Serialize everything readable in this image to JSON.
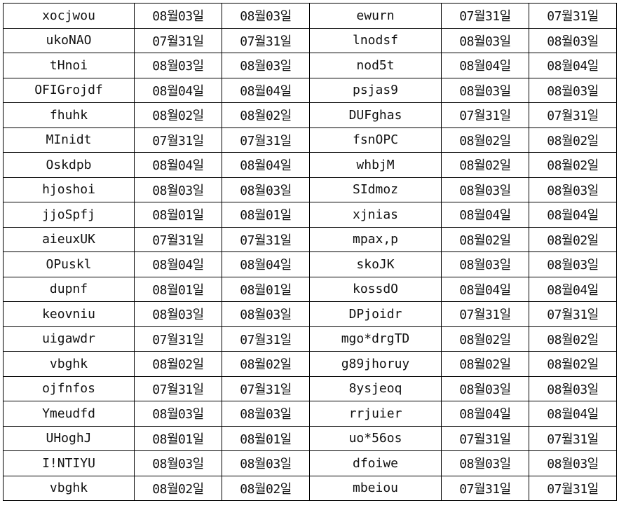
{
  "rows": [
    {
      "name1": "xocjwou",
      "a1": "08월03일",
      "b1": "08월03일",
      "name2": "ewurn",
      "a2": "07월31일",
      "b2": "07월31일"
    },
    {
      "name1": "ukoNAO",
      "a1": "07월31일",
      "b1": "07월31일",
      "name2": "lnodsf",
      "a2": "08월03일",
      "b2": "08월03일"
    },
    {
      "name1": "tHnoi",
      "a1": "08월03일",
      "b1": "08월03일",
      "name2": "nod5t",
      "a2": "08월04일",
      "b2": "08월04일"
    },
    {
      "name1": "OFIGrojdf",
      "a1": "08월04일",
      "b1": "08월04일",
      "name2": "psjas9",
      "a2": "08월03일",
      "b2": "08월03일"
    },
    {
      "name1": "fhuhk",
      "a1": "08월02일",
      "b1": "08월02일",
      "name2": "DUFghas",
      "a2": "07월31일",
      "b2": "07월31일"
    },
    {
      "name1": "MInidt",
      "a1": "07월31일",
      "b1": "07월31일",
      "name2": "fsnOPC",
      "a2": "08월02일",
      "b2": "08월02일"
    },
    {
      "name1": "Oskdpb",
      "a1": "08월04일",
      "b1": "08월04일",
      "name2": "whbjM",
      "a2": "08월02일",
      "b2": "08월02일"
    },
    {
      "name1": "hjoshoi",
      "a1": "08월03일",
      "b1": "08월03일",
      "name2": "SIdmoz",
      "a2": "08월03일",
      "b2": "08월03일"
    },
    {
      "name1": "jjoSpfj",
      "a1": "08월01일",
      "b1": "08월01일",
      "name2": "xjnias",
      "a2": "08월04일",
      "b2": "08월04일"
    },
    {
      "name1": "aieuxUK",
      "a1": "07월31일",
      "b1": "07월31일",
      "name2": "mpax,p",
      "a2": "08월02일",
      "b2": "08월02일"
    },
    {
      "name1": "OPuskl",
      "a1": "08월04일",
      "b1": "08월04일",
      "name2": "skoJK",
      "a2": "08월03일",
      "b2": "08월03일"
    },
    {
      "name1": "dupnf",
      "a1": "08월01일",
      "b1": "08월01일",
      "name2": "kossdO",
      "a2": "08월04일",
      "b2": "08월04일"
    },
    {
      "name1": "keovniu",
      "a1": "08월03일",
      "b1": "08월03일",
      "name2": "DPjoidr",
      "a2": "07월31일",
      "b2": "07월31일"
    },
    {
      "name1": "uigawdr",
      "a1": "07월31일",
      "b1": "07월31일",
      "name2": "mgo*drgTD",
      "a2": "08월02일",
      "b2": "08월02일"
    },
    {
      "name1": "vbghk",
      "a1": "08월02일",
      "b1": "08월02일",
      "name2": "g89jhoruy",
      "a2": "08월02일",
      "b2": "08월02일"
    },
    {
      "name1": "ojfnfos",
      "a1": "07월31일",
      "b1": "07월31일",
      "name2": "8ysjeoq",
      "a2": "08월03일",
      "b2": "08월03일"
    },
    {
      "name1": "Ymeudfd",
      "a1": "08월03일",
      "b1": "08월03일",
      "name2": "rrjuier",
      "a2": "08월04일",
      "b2": "08월04일"
    },
    {
      "name1": "UHoghJ",
      "a1": "08월01일",
      "b1": "08월01일",
      "name2": "uo*56os",
      "a2": "07월31일",
      "b2": "07월31일"
    },
    {
      "name1": "I!NTIYU",
      "a1": "08월03일",
      "b1": "08월03일",
      "name2": "dfoiwe",
      "a2": "08월03일",
      "b2": "08월03일"
    },
    {
      "name1": "vbghk",
      "a1": "08월02일",
      "b1": "08월02일",
      "name2": "mbeiou",
      "a2": "07월31일",
      "b2": "07월31일"
    }
  ]
}
